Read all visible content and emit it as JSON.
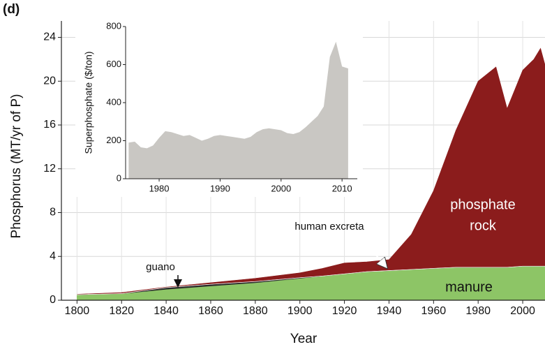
{
  "chart_data": [
    {
      "type": "stacked-area",
      "panel_label": "(d)",
      "x_label": "Year",
      "y_label": "Phosphorus (MT/yr of P)",
      "x": [
        1800,
        1820,
        1840,
        1860,
        1880,
        1900,
        1910,
        1920,
        1930,
        1940,
        1950,
        1960,
        1970,
        1980,
        1988,
        1993,
        2000,
        2005,
        2008,
        2010
      ],
      "series": [
        {
          "name": "manure",
          "color": "#8dc566",
          "values": [
            0.5,
            0.6,
            1.0,
            1.3,
            1.6,
            2.0,
            2.2,
            2.4,
            2.6,
            2.7,
            2.8,
            2.9,
            3.0,
            3.0,
            3.0,
            3.0,
            3.1,
            3.1,
            3.1,
            3.1
          ]
        },
        {
          "name": "guano",
          "color": "#2b2b2b",
          "values": [
            0,
            0,
            0.15,
            0.15,
            0.1,
            0.05,
            0,
            0,
            0,
            0,
            0,
            0,
            0,
            0,
            0,
            0,
            0,
            0,
            0,
            0
          ]
        },
        {
          "name": "human excreta",
          "color": "#ffffff",
          "values": [
            0.05,
            0.05,
            0.05,
            0.05,
            0.05,
            0.05,
            0.05,
            0.05,
            0.05,
            0.05,
            0.05,
            0.05,
            0.05,
            0.05,
            0.05,
            0.05,
            0.05,
            0.05,
            0.05,
            0.05
          ]
        },
        {
          "name": "phosphate rock",
          "color": "#8b1c1c",
          "values": [
            0,
            0.05,
            0,
            0.1,
            0.25,
            0.4,
            0.65,
            0.95,
            0.85,
            0.95,
            3.15,
            7.05,
            12.45,
            16.95,
            18.25,
            14.45,
            17.85,
            18.85,
            19.85,
            18.35
          ]
        }
      ],
      "xlim": [
        1793,
        2010
      ],
      "ylim": [
        0,
        25.5
      ],
      "xticks": [
        1800,
        1820,
        1840,
        1860,
        1880,
        1900,
        1920,
        1940,
        1960,
        1980,
        2000
      ],
      "yticks": [
        0,
        4,
        8,
        12,
        16,
        20,
        24
      ],
      "grid": true
    },
    {
      "type": "area",
      "y_label": "Superphosphate ($/ton)",
      "color": "#c9c7c3",
      "x": [
        1975,
        1976,
        1977,
        1978,
        1979,
        1980,
        1981,
        1982,
        1983,
        1984,
        1985,
        1986,
        1987,
        1988,
        1989,
        1990,
        1991,
        1992,
        1993,
        1994,
        1995,
        1996,
        1997,
        1998,
        1999,
        2000,
        2001,
        2002,
        2003,
        2004,
        2005,
        2006,
        2007,
        2008,
        2009,
        2010,
        2011
      ],
      "values": [
        190,
        195,
        165,
        160,
        175,
        215,
        250,
        245,
        235,
        225,
        230,
        215,
        200,
        210,
        225,
        230,
        225,
        220,
        215,
        210,
        220,
        245,
        260,
        265,
        260,
        255,
        240,
        235,
        245,
        270,
        300,
        330,
        380,
        640,
        720,
        590,
        580
      ],
      "xlim": [
        1974.5,
        2012.5
      ],
      "ylim": [
        0,
        800
      ],
      "xticks": [
        1980,
        1990,
        2000,
        2010
      ],
      "yticks": [
        0,
        200,
        400,
        600,
        800
      ]
    }
  ]
}
